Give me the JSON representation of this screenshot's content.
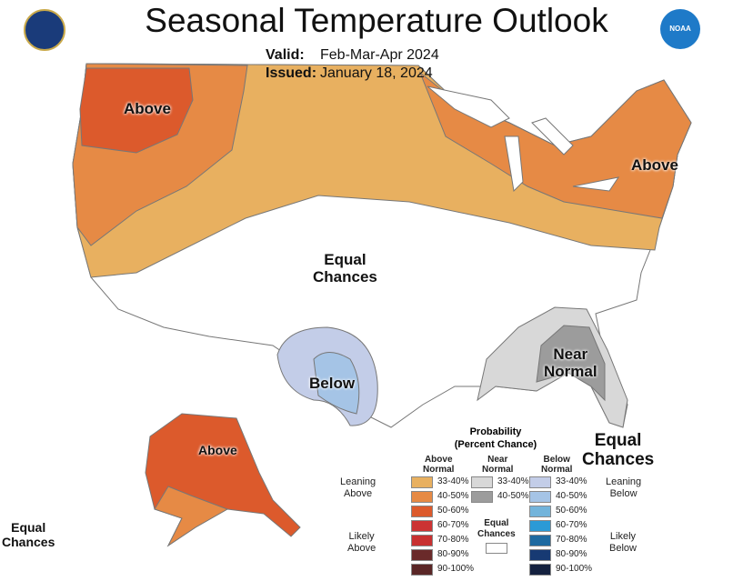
{
  "title": "Seasonal Temperature Outlook",
  "valid_label": "Valid:",
  "valid_value": "Feb-Mar-Apr 2024",
  "issued_label": "Issued:",
  "issued_value": "January 18, 2024",
  "logos": {
    "left": "Department of Commerce seal",
    "right": "NOAA"
  },
  "map_labels": {
    "above_nw": "Above",
    "above_ne": "Above",
    "equal_center_1": "Equal",
    "equal_center_2": "Chances",
    "below": "Below",
    "near_normal_1": "Near",
    "near_normal_2": "Normal",
    "equal_fl_1": "Equal",
    "equal_fl_2": "Chances",
    "above_ak": "Above",
    "equal_hi_1": "Equal",
    "equal_hi_2": "Chances"
  },
  "legend": {
    "title_1": "Probability",
    "title_2": "(Percent Chance)",
    "above_header_1": "Above",
    "above_header_2": "Normal",
    "near_header_1": "Near",
    "near_header_2": "Normal",
    "below_header_1": "Below",
    "below_header_2": "Normal",
    "leaning_above_1": "Leaning",
    "leaning_above_2": "Above",
    "likely_above_1": "Likely",
    "likely_above_2": "Above",
    "leaning_below_1": "Leaning",
    "leaning_below_2": "Below",
    "likely_below_1": "Likely",
    "likely_below_2": "Below",
    "equal_1": "Equal",
    "equal_2": "Chances",
    "above": [
      {
        "range": "33-40%",
        "color": "#e8b060"
      },
      {
        "range": "40-50%",
        "color": "#e68a45"
      },
      {
        "range": "50-60%",
        "color": "#dc5a2c"
      },
      {
        "range": "60-70%",
        "color": "#cc3333"
      },
      {
        "range": "70-80%",
        "color": "#c83030"
      },
      {
        "range": "80-90%",
        "color": "#6a2a2a"
      },
      {
        "range": "90-100%",
        "color": "#5a2626"
      }
    ],
    "near": [
      {
        "range": "33-40%",
        "color": "#d8d8d8"
      },
      {
        "range": "40-50%",
        "color": "#9c9c9c"
      }
    ],
    "below": [
      {
        "range": "33-40%",
        "color": "#c3cde8"
      },
      {
        "range": "40-50%",
        "color": "#a5c4e6"
      },
      {
        "range": "50-60%",
        "color": "#72b4db"
      },
      {
        "range": "60-70%",
        "color": "#2b9ad6"
      },
      {
        "range": "70-80%",
        "color": "#1e6aa0"
      },
      {
        "range": "80-90%",
        "color": "#173a73"
      },
      {
        "range": "90-100%",
        "color": "#14213f"
      }
    ]
  }
}
